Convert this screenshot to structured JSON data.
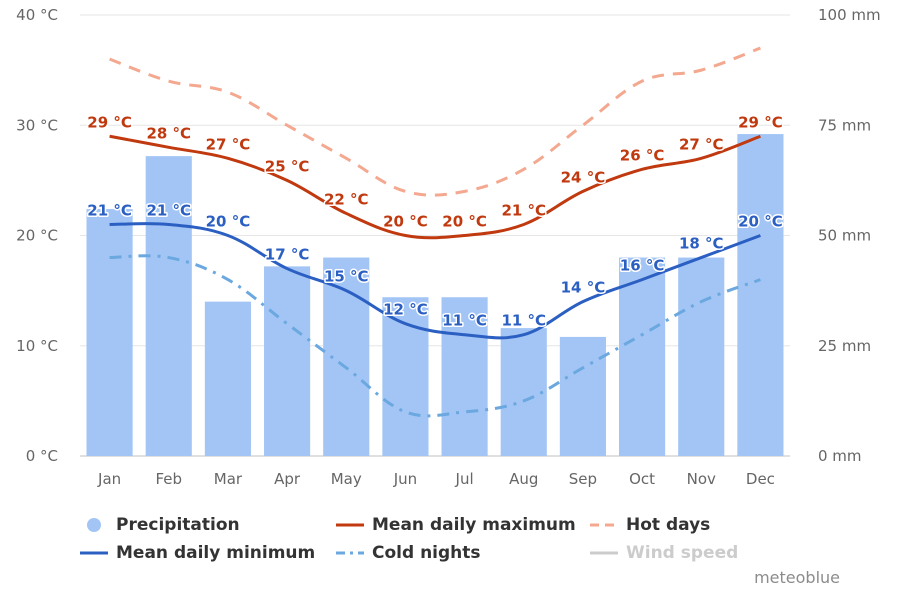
{
  "chart_data": {
    "type": "bar",
    "categories": [
      "Jan",
      "Feb",
      "Mar",
      "Apr",
      "May",
      "Jun",
      "Jul",
      "Aug",
      "Sep",
      "Oct",
      "Nov",
      "Dec"
    ],
    "left_axis": {
      "ticks": [
        0,
        10,
        20,
        30,
        40
      ],
      "tick_labels": [
        "0 °C",
        "10 °C",
        "20 °C",
        "30 °C",
        "40 °C"
      ],
      "range": [
        0,
        40
      ]
    },
    "right_axis": {
      "ticks": [
        0,
        25,
        50,
        75,
        100
      ],
      "tick_labels": [
        "0 mm",
        "25 mm",
        "50 mm",
        "75 mm",
        "100 mm"
      ],
      "range": [
        0,
        100
      ]
    },
    "grid": true,
    "series": [
      {
        "name": "Precipitation",
        "kind": "bar",
        "axis": "right",
        "color": "#a3c5f5",
        "values": [
          56,
          68,
          35,
          43,
          45,
          36,
          36,
          29,
          27,
          45,
          45,
          73
        ]
      },
      {
        "name": "Mean daily maximum",
        "kind": "line",
        "axis": "left",
        "color": "#c0390f",
        "values": [
          29,
          28,
          27,
          25,
          22,
          20,
          20,
          21,
          24,
          26,
          27,
          29
        ],
        "labels": [
          "29 °C",
          "28 °C",
          "27 °C",
          "25 °C",
          "22 °C",
          "20 °C",
          "20 °C",
          "21 °C",
          "24 °C",
          "26 °C",
          "27 °C",
          "29 °C"
        ]
      },
      {
        "name": "Hot days",
        "kind": "dashed",
        "axis": "left",
        "color": "#f3a88f",
        "values": [
          36,
          34,
          33,
          30,
          27,
          24,
          24,
          26,
          30,
          34,
          35,
          37
        ]
      },
      {
        "name": "Mean daily minimum",
        "kind": "line",
        "axis": "left",
        "color": "#2b5fc2",
        "values": [
          21,
          21,
          20,
          17,
          15,
          12,
          11,
          11,
          14,
          16,
          18,
          20
        ],
        "labels": [
          "21 °C",
          "21 °C",
          "20 °C",
          "17 °C",
          "15 °C",
          "12 °C",
          "11 °C",
          "11 °C",
          "14 °C",
          "16 °C",
          "18 °C",
          "20 °C"
        ]
      },
      {
        "name": "Cold nights",
        "kind": "dashdot",
        "axis": "left",
        "color": "#6aa8df",
        "values": [
          18,
          18,
          16,
          12,
          8,
          4,
          4,
          5,
          8,
          11,
          14,
          16
        ]
      }
    ],
    "legend": {
      "placement": "bottom",
      "items": [
        {
          "name": "Precipitation",
          "symbol": "circle",
          "color": "#a3c5f5",
          "enabled": true
        },
        {
          "name": "Mean daily maximum",
          "symbol": "line",
          "color": "#c0390f",
          "enabled": true
        },
        {
          "name": "Hot days",
          "symbol": "dash",
          "color": "#f3a88f",
          "enabled": true
        },
        {
          "name": "Mean daily minimum",
          "symbol": "line",
          "color": "#2b5fc2",
          "enabled": true
        },
        {
          "name": "Cold nights",
          "symbol": "dashdot",
          "color": "#6aa8df",
          "enabled": true
        },
        {
          "name": "Wind speed",
          "symbol": "line",
          "color": "#cccccc",
          "enabled": false
        }
      ]
    },
    "credit": "meteoblue"
  }
}
